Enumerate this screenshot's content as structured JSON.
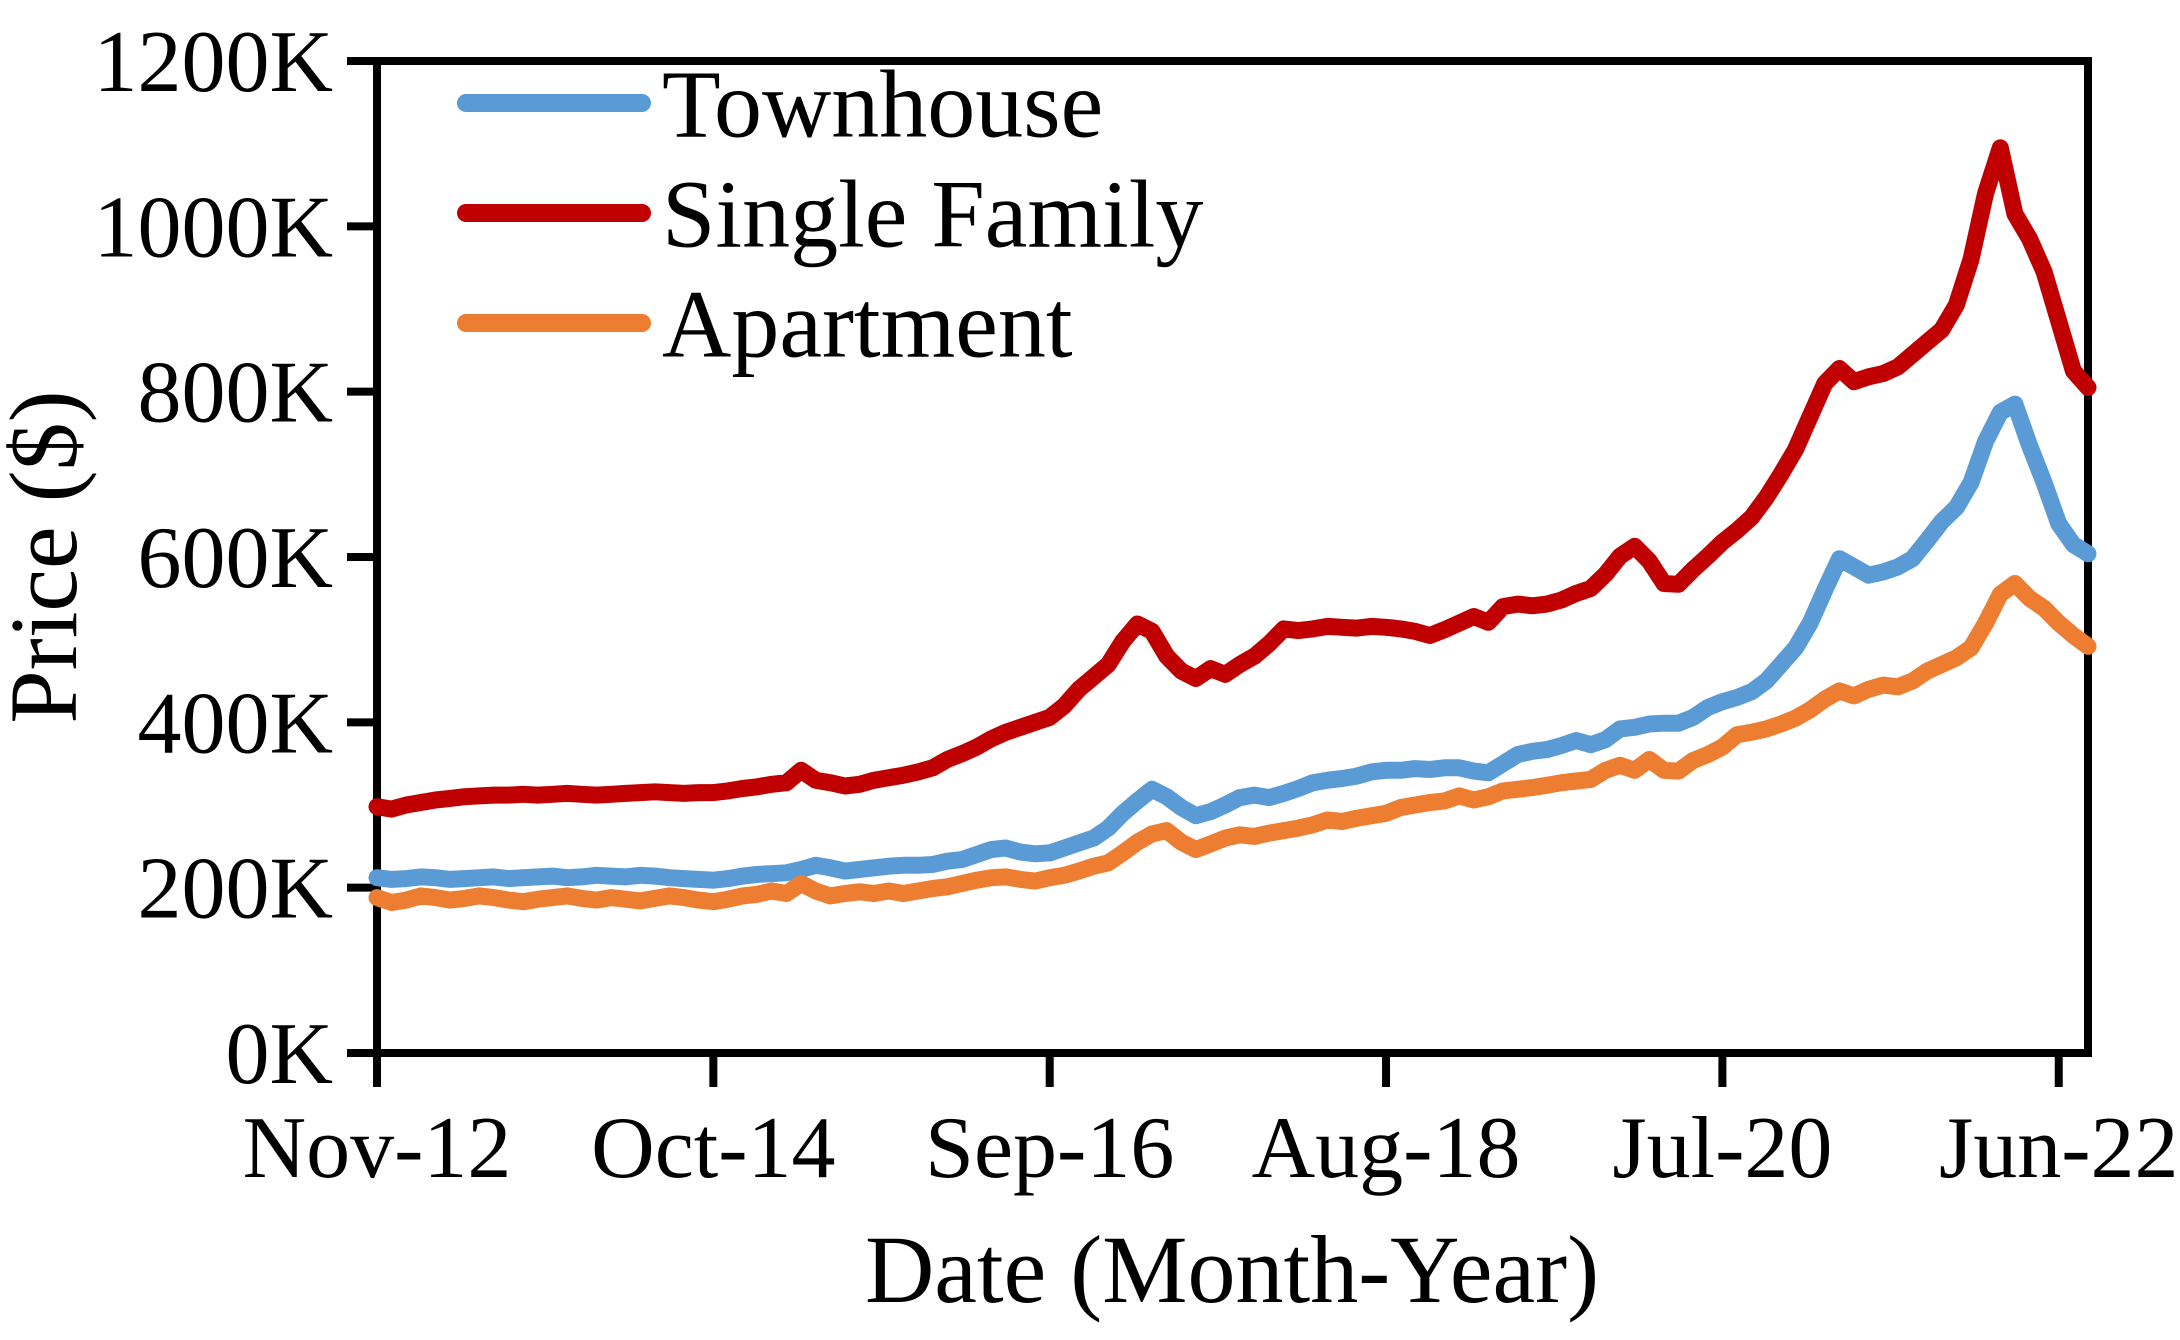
{
  "chart_data": {
    "type": "line",
    "title": "",
    "xlabel": "Date (Month-Year)",
    "ylabel": "Price ($)",
    "frequency": "monthly",
    "x_start_label": "Nov-2012",
    "x_end_label": "Aug-2022",
    "x_tick_labels": [
      "Nov-12",
      "Oct-14",
      "Sep-16",
      "Aug-18",
      "Jul-20",
      "Jun-22"
    ],
    "x_tick_month_indices": [
      0,
      23,
      46,
      69,
      92,
      115
    ],
    "x_range_months": [
      0,
      117
    ],
    "ylim": [
      0,
      1200
    ],
    "y_tick_step": 200,
    "y_tick_labels": [
      "0K",
      "200K",
      "400K",
      "600K",
      "800K",
      "1000K",
      "1200K"
    ],
    "value_unit": "thousands of dollars",
    "grid": false,
    "legend_position": "top-left-inside",
    "axis_color": "#000000",
    "series": [
      {
        "name": "Townhouse",
        "color": "#5B9BD5",
        "values": [
          212,
          210,
          211,
          213,
          212,
          210,
          211,
          212,
          213,
          211,
          212,
          213,
          214,
          212,
          213,
          215,
          214,
          213,
          215,
          214,
          212,
          211,
          210,
          209,
          211,
          214,
          216,
          217,
          218,
          222,
          227,
          224,
          220,
          222,
          224,
          226,
          227,
          227,
          228,
          232,
          234,
          240,
          246,
          248,
          243,
          241,
          242,
          248,
          254,
          260,
          272,
          290,
          305,
          319,
          310,
          297,
          287,
          292,
          300,
          309,
          312,
          309,
          314,
          320,
          327,
          330,
          332,
          335,
          340,
          342,
          342,
          344,
          343,
          345,
          345,
          341,
          339,
          350,
          361,
          365,
          367,
          372,
          378,
          373,
          379,
          392,
          394,
          398,
          399,
          399,
          406,
          418,
          425,
          430,
          437,
          450,
          470,
          490,
          520,
          560,
          598,
          588,
          578,
          582,
          588,
          598,
          620,
          643,
          660,
          690,
          740,
          775,
          785,
          735,
          690,
          640,
          615,
          604
        ]
      },
      {
        "name": "Single Family",
        "color": "#C00000",
        "values": [
          298,
          295,
          300,
          303,
          306,
          308,
          310,
          311,
          312,
          312,
          313,
          312,
          313,
          314,
          313,
          312,
          313,
          314,
          315,
          316,
          315,
          314,
          315,
          315,
          317,
          320,
          322,
          325,
          327,
          342,
          330,
          327,
          323,
          325,
          330,
          333,
          336,
          340,
          345,
          355,
          362,
          370,
          380,
          388,
          394,
          400,
          406,
          420,
          440,
          455,
          470,
          498,
          519,
          510,
          480,
          462,
          453,
          465,
          458,
          470,
          480,
          495,
          513,
          511,
          513,
          516,
          515,
          514,
          516,
          515,
          513,
          510,
          505,
          512,
          520,
          528,
          521,
          540,
          543,
          541,
          543,
          548,
          556,
          562,
          579,
          601,
          613,
          595,
          568,
          567,
          585,
          601,
          618,
          632,
          648,
          672,
          700,
          730,
          770,
          810,
          828,
          812,
          818,
          822,
          830,
          845,
          860,
          875,
          905,
          960,
          1040,
          1095,
          1015,
          985,
          945,
          885,
          825,
          805
        ]
      },
      {
        "name": "Apartment",
        "color": "#ED7D31",
        "values": [
          188,
          182,
          185,
          190,
          188,
          185,
          187,
          190,
          188,
          185,
          183,
          186,
          188,
          190,
          187,
          185,
          188,
          186,
          184,
          187,
          190,
          188,
          185,
          183,
          186,
          190,
          192,
          196,
          193,
          205,
          196,
          190,
          193,
          195,
          193,
          196,
          193,
          196,
          199,
          201,
          205,
          209,
          212,
          213,
          210,
          208,
          212,
          215,
          220,
          226,
          230,
          242,
          255,
          265,
          269,
          255,
          246,
          253,
          260,
          264,
          262,
          266,
          269,
          272,
          276,
          282,
          280,
          284,
          287,
          290,
          297,
          300,
          303,
          305,
          311,
          306,
          310,
          317,
          319,
          321,
          324,
          327,
          329,
          331,
          342,
          348,
          342,
          355,
          342,
          341,
          354,
          361,
          370,
          385,
          388,
          392,
          398,
          405,
          415,
          428,
          438,
          432,
          440,
          445,
          443,
          450,
          462,
          470,
          478,
          490,
          520,
          555,
          568,
          550,
          538,
          520,
          505,
          492
        ]
      }
    ]
  }
}
